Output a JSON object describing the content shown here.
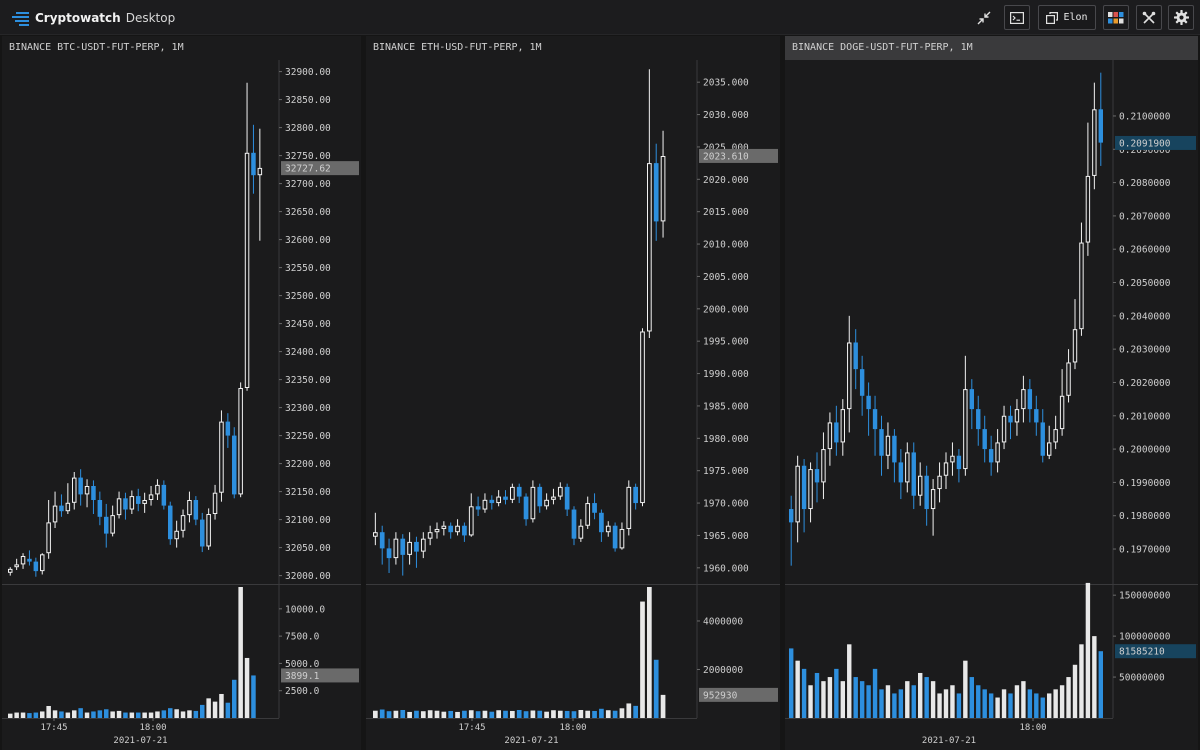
{
  "app": {
    "name": "Cryptowatch",
    "subtitle": "Desktop"
  },
  "toolbar": {
    "profile_label": "Elon"
  },
  "colors": {
    "up": "#f2f2f2",
    "down": "#2d8fde",
    "price_tag_bg": "#6a6a6a",
    "price_tag_blue": "#17445e"
  },
  "charts": [
    {
      "title": "BINANCE BTC-USDT-FUT-PERP, 1M",
      "price_axis": {
        "min": 31985,
        "max": 32910,
        "ticks": [
          "32900.00",
          "32850.00",
          "32800.00",
          "32750.00",
          "32700.00",
          "32650.00",
          "32600.00",
          "32550.00",
          "32500.00",
          "32450.00",
          "32400.00",
          "32350.00",
          "32300.00",
          "32250.00",
          "32200.00",
          "32150.00",
          "32100.00",
          "32050.00",
          "32000.00"
        ]
      },
      "last_price": "32727.62",
      "volume_axis": {
        "max": 12000,
        "ticks": [
          "10000.0",
          "7500.0",
          "5000.0",
          "2500.0"
        ]
      },
      "last_volume": "3899.1",
      "time_labels": [
        "17:45",
        "18:00"
      ],
      "date_label": "2021-07-21",
      "candles": [
        [
          32005,
          32012,
          32000,
          32015
        ],
        [
          32015,
          32020,
          32010,
          32030
        ],
        [
          32020,
          32035,
          32012,
          32040
        ],
        [
          32030,
          32025,
          32018,
          32045
        ],
        [
          32025,
          32008,
          31998,
          32032
        ],
        [
          32008,
          32038,
          32002,
          32040
        ],
        [
          32040,
          32095,
          32030,
          32135
        ],
        [
          32095,
          32125,
          32085,
          32150
        ],
        [
          32125,
          32115,
          32105,
          32145
        ],
        [
          32115,
          32130,
          32110,
          32165
        ],
        [
          32130,
          32175,
          32118,
          32185
        ],
        [
          32175,
          32145,
          32125,
          32190
        ],
        [
          32145,
          32160,
          32122,
          32172
        ],
        [
          32160,
          32135,
          32110,
          32170
        ],
        [
          32135,
          32105,
          32090,
          32150
        ],
        [
          32105,
          32075,
          32050,
          32128
        ],
        [
          32075,
          32108,
          32070,
          32125
        ],
        [
          32108,
          32138,
          32102,
          32150
        ],
        [
          32138,
          32118,
          32100,
          32148
        ],
        [
          32118,
          32142,
          32110,
          32152
        ],
        [
          32142,
          32128,
          32115,
          32155
        ],
        [
          32128,
          32135,
          32112,
          32148
        ],
        [
          32135,
          32145,
          32125,
          32160
        ],
        [
          32145,
          32162,
          32135,
          32172
        ],
        [
          32162,
          32125,
          32118,
          32170
        ],
        [
          32125,
          32065,
          32055,
          32132
        ],
        [
          32065,
          32080,
          32050,
          32098
        ],
        [
          32080,
          32108,
          32068,
          32118
        ],
        [
          32108,
          32135,
          32095,
          32150
        ],
        [
          32135,
          32100,
          32090,
          32142
        ],
        [
          32100,
          32052,
          32042,
          32112
        ],
        [
          32052,
          32110,
          32046,
          32120
        ],
        [
          32110,
          32148,
          32100,
          32162
        ],
        [
          32148,
          32275,
          32132,
          32295
        ],
        [
          32275,
          32250,
          32228,
          32290
        ],
        [
          32250,
          32145,
          32138,
          32265
        ],
        [
          32145,
          32335,
          32140,
          32345
        ],
        [
          32335,
          32755,
          32330,
          32880
        ],
        [
          32755,
          32715,
          32682,
          32805
        ],
        [
          32715,
          32728,
          32598,
          32798
        ]
      ],
      "volumes": [
        400,
        500,
        500,
        450,
        500,
        600,
        1100,
        700,
        600,
        500,
        700,
        900,
        500,
        600,
        700,
        800,
        600,
        650,
        500,
        500,
        500,
        500,
        500,
        600,
        700,
        900,
        800,
        600,
        700,
        650,
        1200,
        1800,
        1500,
        2200,
        1400,
        3500,
        12000,
        5500,
        3899
      ]
    },
    {
      "title": "BINANCE ETH-USD-FUT-PERP, 1M",
      "price_axis": {
        "min": 1957.5,
        "max": 2037.5,
        "ticks": [
          "2035.000",
          "2030.000",
          "2025.000",
          "2020.000",
          "2015.000",
          "2010.000",
          "2005.000",
          "2000.000",
          "1995.000",
          "1990.000",
          "1985.000",
          "1980.000",
          "1975.000",
          "1970.000",
          "1965.000",
          "1960.000"
        ]
      },
      "last_price": "2023.610",
      "volume_axis": {
        "max": 5400000,
        "ticks": [
          "4000000",
          "2000000"
        ]
      },
      "last_volume": "952930",
      "time_labels": [
        "17:45",
        "18:00"
      ],
      "date_label": "2021-07-21",
      "candles": [
        [
          1964.8,
          1965.5,
          1963.5,
          1968.5
        ],
        [
          1965.5,
          1963.0,
          1960.5,
          1966.5
        ],
        [
          1963.0,
          1961.5,
          1959.2,
          1964.5
        ],
        [
          1961.5,
          1964.5,
          1960.5,
          1965.5
        ],
        [
          1964.5,
          1962.0,
          1958.8,
          1965.2
        ],
        [
          1962.0,
          1964.0,
          1960.5,
          1965.5
        ],
        [
          1964.0,
          1962.5,
          1960.0,
          1964.8
        ],
        [
          1962.5,
          1964.5,
          1961.5,
          1965.5
        ],
        [
          1964.5,
          1965.5,
          1963.5,
          1966.5
        ],
        [
          1965.5,
          1966.0,
          1964.5,
          1967.0
        ],
        [
          1966.0,
          1966.5,
          1965.0,
          1967.2
        ],
        [
          1966.5,
          1965.5,
          1964.5,
          1967.0
        ],
        [
          1965.5,
          1966.5,
          1965.0,
          1967.5
        ],
        [
          1966.5,
          1965.0,
          1964.0,
          1967.0
        ],
        [
          1965.0,
          1969.5,
          1964.8,
          1971.5
        ],
        [
          1969.5,
          1969.0,
          1968.0,
          1971.0
        ],
        [
          1969.0,
          1970.5,
          1968.5,
          1971.5
        ],
        [
          1970.5,
          1970.0,
          1969.0,
          1971.2
        ],
        [
          1970.0,
          1971.0,
          1969.5,
          1972.0
        ],
        [
          1971.0,
          1970.5,
          1969.8,
          1972.0
        ],
        [
          1970.5,
          1972.5,
          1970.0,
          1973.0
        ],
        [
          1972.5,
          1971.0,
          1970.0,
          1973.0
        ],
        [
          1971.0,
          1967.5,
          1966.5,
          1971.5
        ],
        [
          1967.5,
          1972.5,
          1967.0,
          1973.5
        ],
        [
          1972.5,
          1969.5,
          1968.5,
          1973.0
        ],
        [
          1969.5,
          1970.5,
          1969.0,
          1971.5
        ],
        [
          1970.5,
          1971.0,
          1969.8,
          1972.2
        ],
        [
          1971.0,
          1972.5,
          1970.5,
          1973.2
        ],
        [
          1972.5,
          1969.0,
          1968.0,
          1973.0
        ],
        [
          1969.0,
          1964.5,
          1963.5,
          1969.5
        ],
        [
          1964.5,
          1966.5,
          1964.0,
          1967.5
        ],
        [
          1966.5,
          1970.0,
          1966.0,
          1971.0
        ],
        [
          1970.0,
          1968.5,
          1967.5,
          1971.5
        ],
        [
          1968.5,
          1965.5,
          1964.0,
          1969.0
        ],
        [
          1965.5,
          1966.5,
          1964.8,
          1967.2
        ],
        [
          1966.5,
          1963.0,
          1962.5,
          1967.0
        ],
        [
          1963.0,
          1966.0,
          1962.8,
          1967.0
        ],
        [
          1966.0,
          1972.5,
          1965.0,
          1973.5
        ],
        [
          1972.5,
          1970.0,
          1969.0,
          1973.0
        ],
        [
          1970.0,
          1996.5,
          1969.5,
          1997.0
        ],
        [
          1996.5,
          2022.5,
          1995.5,
          2037.0
        ],
        [
          2022.5,
          2013.5,
          2010.5,
          2025.5
        ],
        [
          2013.5,
          2023.6,
          2011.0,
          2027.5
        ]
      ],
      "volumes": [
        300000,
        350000,
        280000,
        300000,
        330000,
        250000,
        300000,
        280000,
        320000,
        300000,
        260000,
        290000,
        250000,
        300000,
        320000,
        280000,
        300000,
        260000,
        320000,
        300000,
        290000,
        330000,
        280000,
        310000,
        300000,
        260000,
        320000,
        300000,
        290000,
        280000,
        330000,
        300000,
        290000,
        380000,
        320000,
        300000,
        400000,
        600000,
        500000,
        4800000,
        5400000,
        2400000,
        952930
      ]
    },
    {
      "title": "BINANCE DOGE-USDT-FUT-PERP, 1M",
      "price_axis": {
        "min": 0.19595,
        "max": 0.2115,
        "ticks": [
          "0.2100000",
          "0.2090000",
          "0.2080000",
          "0.2070000",
          "0.2060000",
          "0.2050000",
          "0.2040000",
          "0.2030000",
          "0.2020000",
          "0.2010000",
          "0.2000000",
          "0.1990000",
          "0.1980000",
          "0.1970000"
        ]
      },
      "last_price": "0.2091900",
      "volume_axis": {
        "max": 160000000,
        "ticks": [
          "150000000",
          "100000000",
          "50000000"
        ]
      },
      "last_volume": "81585210",
      "time_labels": [
        "18:00"
      ],
      "date_label": "2021-07-21",
      "candles": [
        [
          0.1982,
          0.1978,
          0.1965,
          0.1986
        ],
        [
          0.1978,
          0.1995,
          0.1972,
          0.1998
        ],
        [
          0.1995,
          0.1982,
          0.1975,
          0.1997
        ],
        [
          0.1982,
          0.1994,
          0.1978,
          0.1996
        ],
        [
          0.1994,
          0.199,
          0.1984,
          0.1999
        ],
        [
          0.199,
          0.2,
          0.1985,
          0.2005
        ],
        [
          0.2,
          0.2008,
          0.1995,
          0.2011
        ],
        [
          0.2008,
          0.2002,
          0.1998,
          0.2013
        ],
        [
          0.2002,
          0.2012,
          0.1998,
          0.2015
        ],
        [
          0.2012,
          0.2032,
          0.2005,
          0.204
        ],
        [
          0.2032,
          0.2024,
          0.2018,
          0.2036
        ],
        [
          0.2024,
          0.2016,
          0.201,
          0.2028
        ],
        [
          0.2016,
          0.2012,
          0.2004,
          0.202
        ],
        [
          0.2012,
          0.2006,
          0.1998,
          0.2016
        ],
        [
          0.2006,
          0.1998,
          0.1992,
          0.201
        ],
        [
          0.1998,
          0.2004,
          0.1994,
          0.2008
        ],
        [
          0.2004,
          0.1996,
          0.199,
          0.2006
        ],
        [
          0.1996,
          0.199,
          0.1985,
          0.2
        ],
        [
          0.199,
          0.1999,
          0.1987,
          0.2002
        ],
        [
          0.1999,
          0.1986,
          0.1982,
          0.2002
        ],
        [
          0.1986,
          0.1992,
          0.1983,
          0.1996
        ],
        [
          0.1992,
          0.1982,
          0.1977,
          0.1995
        ],
        [
          0.1982,
          0.1988,
          0.1974,
          0.1991
        ],
        [
          0.1988,
          0.1992,
          0.1984,
          0.1996
        ],
        [
          0.1992,
          0.1996,
          0.1988,
          0.1999
        ],
        [
          0.1996,
          0.1998,
          0.1992,
          0.2002
        ],
        [
          0.1998,
          0.1994,
          0.199,
          0.2
        ],
        [
          0.1994,
          0.2018,
          0.1992,
          0.2028
        ],
        [
          0.2018,
          0.2012,
          0.2006,
          0.2021
        ],
        [
          0.2012,
          0.2006,
          0.2001,
          0.2016
        ],
        [
          0.2006,
          0.2,
          0.1996,
          0.201
        ],
        [
          0.2,
          0.1996,
          0.1992,
          0.2004
        ],
        [
          0.1996,
          0.2002,
          0.1993,
          0.2006
        ],
        [
          0.2002,
          0.201,
          0.2,
          0.2013
        ],
        [
          0.201,
          0.2008,
          0.2003,
          0.2013
        ],
        [
          0.2008,
          0.2012,
          0.2004,
          0.2015
        ],
        [
          0.2012,
          0.2018,
          0.2008,
          0.2022
        ],
        [
          0.2018,
          0.2012,
          0.2008,
          0.2021
        ],
        [
          0.2012,
          0.2008,
          0.2004,
          0.2016
        ],
        [
          0.2008,
          0.1998,
          0.1996,
          0.2012
        ],
        [
          0.1998,
          0.2002,
          0.1997,
          0.2007
        ],
        [
          0.2002,
          0.2006,
          0.2,
          0.201
        ],
        [
          0.2006,
          0.2016,
          0.2004,
          0.2024
        ],
        [
          0.2016,
          0.2026,
          0.2014,
          0.203
        ],
        [
          0.2026,
          0.2036,
          0.2024,
          0.2045
        ],
        [
          0.2036,
          0.2062,
          0.2034,
          0.2068
        ],
        [
          0.2062,
          0.2082,
          0.2058,
          0.2098
        ],
        [
          0.2082,
          0.2102,
          0.2078,
          0.211
        ],
        [
          0.2102,
          0.2092,
          0.2085,
          0.2113
        ]
      ],
      "volumes": [
        85000000,
        70000000,
        60000000,
        40000000,
        55000000,
        45000000,
        50000000,
        60000000,
        45000000,
        90000000,
        50000000,
        45000000,
        40000000,
        60000000,
        35000000,
        40000000,
        30000000,
        35000000,
        45000000,
        40000000,
        55000000,
        50000000,
        45000000,
        30000000,
        35000000,
        40000000,
        30000000,
        70000000,
        50000000,
        40000000,
        35000000,
        30000000,
        25000000,
        35000000,
        30000000,
        40000000,
        45000000,
        35000000,
        30000000,
        25000000,
        30000000,
        35000000,
        40000000,
        50000000,
        65000000,
        90000000,
        165000000,
        100000000,
        81585210
      ]
    }
  ]
}
